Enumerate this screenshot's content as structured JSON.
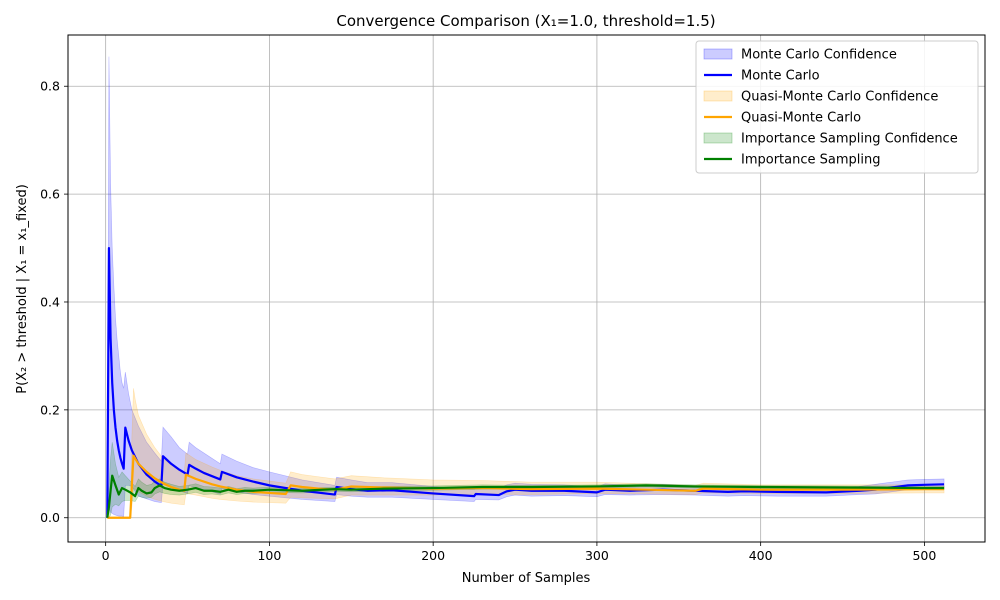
{
  "chart_data": {
    "type": "line",
    "title": "Convergence Comparison (X₁=1.0, threshold=1.5)",
    "xlabel": "Number of Samples",
    "ylabel": "P(X₂ > threshold | X₁ = x₁_fixed)",
    "xlim": [
      -23,
      537
    ],
    "ylim": [
      -0.045,
      0.895
    ],
    "xticks": [
      0,
      100,
      200,
      300,
      400,
      500
    ],
    "yticks": [
      0.0,
      0.2,
      0.4,
      0.6,
      0.8
    ],
    "xtick_labels": [
      "0",
      "100",
      "200",
      "300",
      "400",
      "500"
    ],
    "ytick_labels": [
      "0.0",
      "0.2",
      "0.4",
      "0.6",
      "0.8"
    ],
    "grid": true,
    "legend_position": "top-right",
    "legend_entries": [
      "Monte Carlo Confidence",
      "Monte Carlo",
      "Quasi-Monte Carlo Confidence",
      "Quasi-Monte Carlo",
      "Importance Sampling Confidence",
      "Importance Sampling"
    ],
    "series": [
      {
        "name": "Monte Carlo",
        "color": "#0000ff",
        "band_color": "#0000ff",
        "x": [
          1,
          2,
          3,
          4,
          5,
          6,
          7,
          8,
          9,
          10,
          11,
          12,
          14,
          16,
          20,
          25,
          30,
          34,
          35,
          40,
          45,
          50,
          51,
          55,
          60,
          65,
          70,
          71,
          80,
          90,
          100,
          120,
          140,
          141,
          150,
          160,
          175,
          200,
          225,
          226,
          240,
          245,
          250,
          260,
          280,
          300,
          305,
          320,
          340,
          360,
          380,
          390,
          410,
          440,
          460,
          470,
          480,
          490,
          500,
          512
        ],
        "y": [
          0.0,
          0.5,
          0.333,
          0.25,
          0.2,
          0.167,
          0.143,
          0.125,
          0.111,
          0.1,
          0.091,
          0.167,
          0.143,
          0.125,
          0.1,
          0.08,
          0.067,
          0.059,
          0.114,
          0.1,
          0.089,
          0.08,
          0.098,
          0.091,
          0.083,
          0.077,
          0.071,
          0.085,
          0.075,
          0.067,
          0.06,
          0.05,
          0.043,
          0.057,
          0.053,
          0.05,
          0.051,
          0.045,
          0.04,
          0.044,
          0.042,
          0.049,
          0.052,
          0.05,
          0.05,
          0.047,
          0.052,
          0.05,
          0.052,
          0.05,
          0.048,
          0.049,
          0.048,
          0.047,
          0.05,
          0.052,
          0.056,
          0.06,
          0.061,
          0.062
        ],
        "lower": [
          0.0,
          0.02,
          0.01,
          0.008,
          0.006,
          0.005,
          0.004,
          0.003,
          0.003,
          0.003,
          0.002,
          0.06,
          0.06,
          0.058,
          0.04,
          0.035,
          0.03,
          0.028,
          0.062,
          0.055,
          0.05,
          0.045,
          0.06,
          0.055,
          0.052,
          0.048,
          0.044,
          0.054,
          0.048,
          0.043,
          0.04,
          0.034,
          0.03,
          0.043,
          0.04,
          0.038,
          0.038,
          0.034,
          0.03,
          0.034,
          0.033,
          0.039,
          0.042,
          0.04,
          0.041,
          0.039,
          0.043,
          0.042,
          0.043,
          0.042,
          0.04,
          0.041,
          0.04,
          0.04,
          0.043,
          0.044,
          0.048,
          0.052,
          0.053,
          0.054
        ],
        "upper": [
          0.0,
          0.855,
          0.62,
          0.5,
          0.43,
          0.37,
          0.33,
          0.3,
          0.27,
          0.25,
          0.24,
          0.27,
          0.23,
          0.2,
          0.17,
          0.14,
          0.12,
          0.105,
          0.168,
          0.15,
          0.13,
          0.118,
          0.14,
          0.13,
          0.12,
          0.11,
          0.1,
          0.118,
          0.105,
          0.093,
          0.085,
          0.07,
          0.06,
          0.075,
          0.07,
          0.065,
          0.065,
          0.058,
          0.052,
          0.056,
          0.054,
          0.061,
          0.064,
          0.062,
          0.061,
          0.057,
          0.063,
          0.06,
          0.062,
          0.059,
          0.057,
          0.058,
          0.057,
          0.055,
          0.058,
          0.062,
          0.066,
          0.07,
          0.071,
          0.072
        ]
      },
      {
        "name": "Quasi-Monte Carlo",
        "color": "#ffa500",
        "band_color": "#ffa500",
        "x": [
          1,
          5,
          10,
          15,
          16,
          17,
          18,
          20,
          25,
          30,
          35,
          40,
          45,
          48,
          49,
          55,
          65,
          70,
          80,
          90,
          100,
          110,
          113,
          120,
          130,
          140,
          150,
          170,
          200,
          230,
          260,
          300,
          330,
          360,
          365,
          400,
          450,
          500,
          512
        ],
        "y": [
          0.0,
          0.0,
          0.0,
          0.0,
          0.06,
          0.115,
          0.11,
          0.1,
          0.085,
          0.073,
          0.064,
          0.057,
          0.052,
          0.05,
          0.08,
          0.072,
          0.062,
          0.058,
          0.052,
          0.048,
          0.046,
          0.044,
          0.06,
          0.057,
          0.054,
          0.052,
          0.058,
          0.056,
          0.054,
          0.055,
          0.053,
          0.054,
          0.052,
          0.05,
          0.054,
          0.052,
          0.052,
          0.053,
          0.053
        ],
        "lower": [
          0.0,
          0.0,
          0.0,
          0.0,
          0.02,
          0.055,
          0.052,
          0.048,
          0.04,
          0.034,
          0.03,
          0.027,
          0.025,
          0.024,
          0.045,
          0.042,
          0.036,
          0.034,
          0.031,
          0.029,
          0.028,
          0.027,
          0.038,
          0.037,
          0.036,
          0.035,
          0.042,
          0.042,
          0.042,
          0.044,
          0.043,
          0.045,
          0.044,
          0.043,
          0.046,
          0.045,
          0.045,
          0.046,
          0.046
        ],
        "upper": [
          0.0,
          0.0,
          0.0,
          0.0,
          0.15,
          0.24,
          0.22,
          0.19,
          0.155,
          0.13,
          0.11,
          0.098,
          0.088,
          0.083,
          0.12,
          0.108,
          0.094,
          0.088,
          0.078,
          0.072,
          0.068,
          0.064,
          0.085,
          0.08,
          0.076,
          0.072,
          0.078,
          0.074,
          0.07,
          0.069,
          0.066,
          0.066,
          0.063,
          0.06,
          0.064,
          0.061,
          0.061,
          0.061,
          0.061
        ]
      },
      {
        "name": "Importance Sampling",
        "color": "#008000",
        "band_color": "#008000",
        "x": [
          1,
          2,
          3,
          4,
          6,
          8,
          10,
          12,
          15,
          18,
          20,
          22,
          25,
          28,
          30,
          33,
          36,
          40,
          45,
          50,
          55,
          60,
          65,
          70,
          75,
          80,
          85,
          90,
          100,
          120,
          140,
          150,
          170,
          200,
          230,
          260,
          300,
          330,
          360,
          400,
          450,
          500,
          512
        ],
        "y": [
          0.0,
          0.02,
          0.05,
          0.078,
          0.06,
          0.043,
          0.055,
          0.052,
          0.047,
          0.04,
          0.055,
          0.05,
          0.045,
          0.047,
          0.055,
          0.06,
          0.055,
          0.052,
          0.05,
          0.052,
          0.055,
          0.05,
          0.05,
          0.048,
          0.052,
          0.048,
          0.05,
          0.05,
          0.052,
          0.05,
          0.053,
          0.052,
          0.054,
          0.055,
          0.057,
          0.057,
          0.058,
          0.06,
          0.058,
          0.057,
          0.056,
          0.055,
          0.055
        ],
        "lower": [
          0.0,
          0.0,
          0.005,
          0.02,
          0.025,
          0.022,
          0.03,
          0.032,
          0.032,
          0.03,
          0.04,
          0.038,
          0.036,
          0.038,
          0.044,
          0.048,
          0.045,
          0.043,
          0.042,
          0.044,
          0.047,
          0.043,
          0.044,
          0.042,
          0.046,
          0.043,
          0.045,
          0.045,
          0.047,
          0.046,
          0.049,
          0.048,
          0.05,
          0.051,
          0.053,
          0.054,
          0.055,
          0.057,
          0.055,
          0.054,
          0.053,
          0.052,
          0.052
        ],
        "upper": [
          0.0,
          0.06,
          0.11,
          0.14,
          0.1,
          0.075,
          0.085,
          0.078,
          0.068,
          0.058,
          0.072,
          0.066,
          0.06,
          0.062,
          0.068,
          0.072,
          0.066,
          0.062,
          0.058,
          0.06,
          0.063,
          0.058,
          0.057,
          0.055,
          0.058,
          0.054,
          0.056,
          0.055,
          0.057,
          0.054,
          0.057,
          0.056,
          0.058,
          0.059,
          0.061,
          0.06,
          0.061,
          0.063,
          0.061,
          0.06,
          0.059,
          0.058,
          0.058
        ]
      }
    ]
  }
}
